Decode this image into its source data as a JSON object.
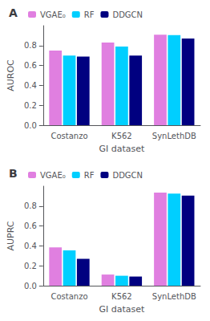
{
  "chart_data": [
    {
      "type": "bar",
      "title": "A",
      "xlabel": "GI dataset",
      "ylabel": "AUROC",
      "categories": [
        "Costanzo",
        "K562",
        "SynLethDB"
      ],
      "series": [
        {
          "name": "VGAE₀",
          "color": "#e07fe0",
          "values": [
            0.75,
            0.83,
            0.91
          ]
        },
        {
          "name": "RF",
          "color": "#00cfff",
          "values": [
            0.7,
            0.79,
            0.905
          ]
        },
        {
          "name": "DDGCN",
          "color": "#000080",
          "values": [
            0.69,
            0.7,
            0.87
          ]
        }
      ],
      "ylim": [
        0.0,
        1.0
      ],
      "yticks": [
        {
          "value": 0,
          "label": "0.0"
        },
        0.2,
        0.4,
        0.6,
        0.8
      ],
      "grid": false,
      "legend": "upper left"
    },
    {
      "type": "bar",
      "title": "B",
      "xlabel": "GI dataset",
      "ylabel": "AUPRC",
      "categories": [
        "Costanzo",
        "K562",
        "SynLethDB"
      ],
      "series": [
        {
          "name": "VGAE₀",
          "color": "#e07fe0",
          "values": [
            0.385,
            0.112,
            0.935
          ]
        },
        {
          "name": "RF",
          "color": "#00cfff",
          "values": [
            0.355,
            0.1,
            0.925
          ]
        },
        {
          "name": "DDGCN",
          "color": "#000080",
          "values": [
            0.27,
            0.092,
            0.905
          ]
        }
      ],
      "ylim": [
        0.0,
        1.0
      ],
      "yticks": [
        {
          "value": 0,
          "label": "0.0"
        },
        0.2,
        0.4,
        0.6,
        0.8
      ],
      "grid": false,
      "legend": "upper left"
    }
  ]
}
